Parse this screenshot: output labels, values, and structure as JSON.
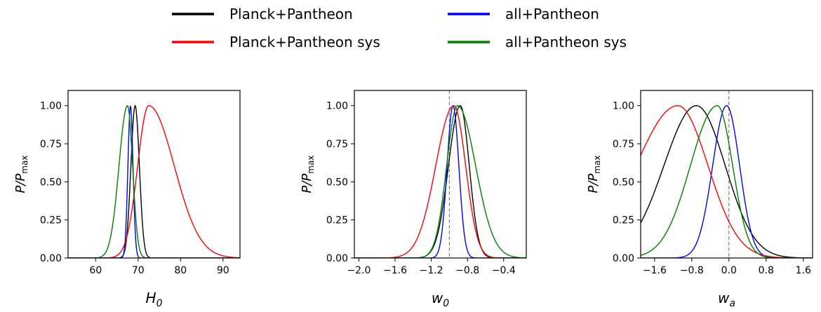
{
  "legend": {
    "placement": "top-center",
    "entries": [
      {
        "label": "Planck+Pantheon",
        "color": "#000000"
      },
      {
        "label": "all+Pantheon",
        "color": "#0000ff"
      },
      {
        "label": "Planck+Pantheon sys",
        "color": "#ff0000"
      },
      {
        "label": "all+Pantheon sys",
        "color": "#008000"
      }
    ]
  },
  "chart_data": [
    {
      "type": "line",
      "xlabel": {
        "base": "H",
        "sub": "0"
      },
      "ylabel": {
        "base": "P/P",
        "sub": "max"
      },
      "xlim": [
        53.5,
        94
      ],
      "ylim": [
        0,
        1.1
      ],
      "xticks": [
        60,
        70,
        80,
        90
      ],
      "xtick_labels": [
        "60",
        "70",
        "80",
        "90"
      ],
      "yticks": [
        0,
        0.25,
        0.5,
        0.75,
        1.0
      ],
      "ytick_labels": [
        "0.00",
        "0.25",
        "0.50",
        "0.75",
        "1.00"
      ],
      "vline": null,
      "series": [
        {
          "name": "Planck+Pantheon",
          "color": "#000000",
          "peak": 69.3,
          "sigma_left": 1.0,
          "sigma_right": 1.0
        },
        {
          "name": "all+Pantheon",
          "color": "#0000ff",
          "peak": 68.2,
          "sigma_left": 0.6,
          "sigma_right": 0.6
        },
        {
          "name": "Planck+Pantheon sys",
          "color": "#ff0000",
          "peak": 72.5,
          "sigma_left": 2.6,
          "sigma_right": 6.0
        },
        {
          "name": "all+Pantheon sys",
          "color": "#008000",
          "peak": 67.5,
          "sigma_left": 2.0,
          "sigma_right": 1.2
        }
      ]
    },
    {
      "type": "line",
      "xlabel": {
        "base": "w",
        "sub": "0"
      },
      "ylabel": {
        "base": "P/P",
        "sub": "max"
      },
      "xlim": [
        -2.05,
        -0.15
      ],
      "ylim": [
        0,
        1.1
      ],
      "xticks": [
        -2.0,
        -1.6,
        -1.2,
        -0.8,
        -0.4
      ],
      "xtick_labels": [
        "−2.0",
        "−1.6",
        "−1.2",
        "−0.8",
        "−0.4"
      ],
      "yticks": [
        0,
        0.25,
        0.5,
        0.75,
        1.0
      ],
      "ytick_labels": [
        "0.00",
        "0.25",
        "0.50",
        "0.75",
        "1.00"
      ],
      "vline": -1.0,
      "series": [
        {
          "name": "Planck+Pantheon",
          "color": "#000000",
          "peak": -0.88,
          "sigma_left": 0.13,
          "sigma_right": 0.1
        },
        {
          "name": "all+Pantheon",
          "color": "#0000ff",
          "peak": -0.96,
          "sigma_left": 0.065,
          "sigma_right": 0.065
        },
        {
          "name": "Planck+Pantheon sys",
          "color": "#ff0000",
          "peak": -0.95,
          "sigma_left": 0.2,
          "sigma_right": 0.13
        },
        {
          "name": "all+Pantheon sys",
          "color": "#008000",
          "peak": -0.91,
          "sigma_left": 0.12,
          "sigma_right": 0.2
        }
      ]
    },
    {
      "type": "line",
      "xlabel": {
        "base": "w",
        "sub": "a"
      },
      "ylabel": {
        "base": "P/P",
        "sub": "max"
      },
      "xlim": [
        -1.9,
        1.8
      ],
      "ylim": [
        0,
        1.1
      ],
      "xticks": [
        -1.6,
        -0.8,
        0.0,
        0.8,
        1.6
      ],
      "xtick_labels": [
        "−1.6",
        "−0.8",
        "0.0",
        "0.8",
        "1.6"
      ],
      "yticks": [
        0,
        0.25,
        0.5,
        0.75,
        1.0
      ],
      "ytick_labels": [
        "0.00",
        "0.25",
        "0.50",
        "0.75",
        "1.00"
      ],
      "vline": 0.0,
      "series": [
        {
          "name": "Planck+Pantheon",
          "color": "#000000",
          "peak": -0.7,
          "sigma_left": 0.7,
          "sigma_right": 0.62
        },
        {
          "name": "all+Pantheon",
          "color": "#0000ff",
          "peak": -0.05,
          "sigma_left": 0.3,
          "sigma_right": 0.28
        },
        {
          "name": "Planck+Pantheon sys",
          "color": "#ff0000",
          "peak": -1.1,
          "sigma_left": 0.9,
          "sigma_right": 0.65
        },
        {
          "name": "all+Pantheon sys",
          "color": "#008000",
          "peak": -0.25,
          "sigma_left": 0.58,
          "sigma_right": 0.33
        }
      ]
    }
  ]
}
